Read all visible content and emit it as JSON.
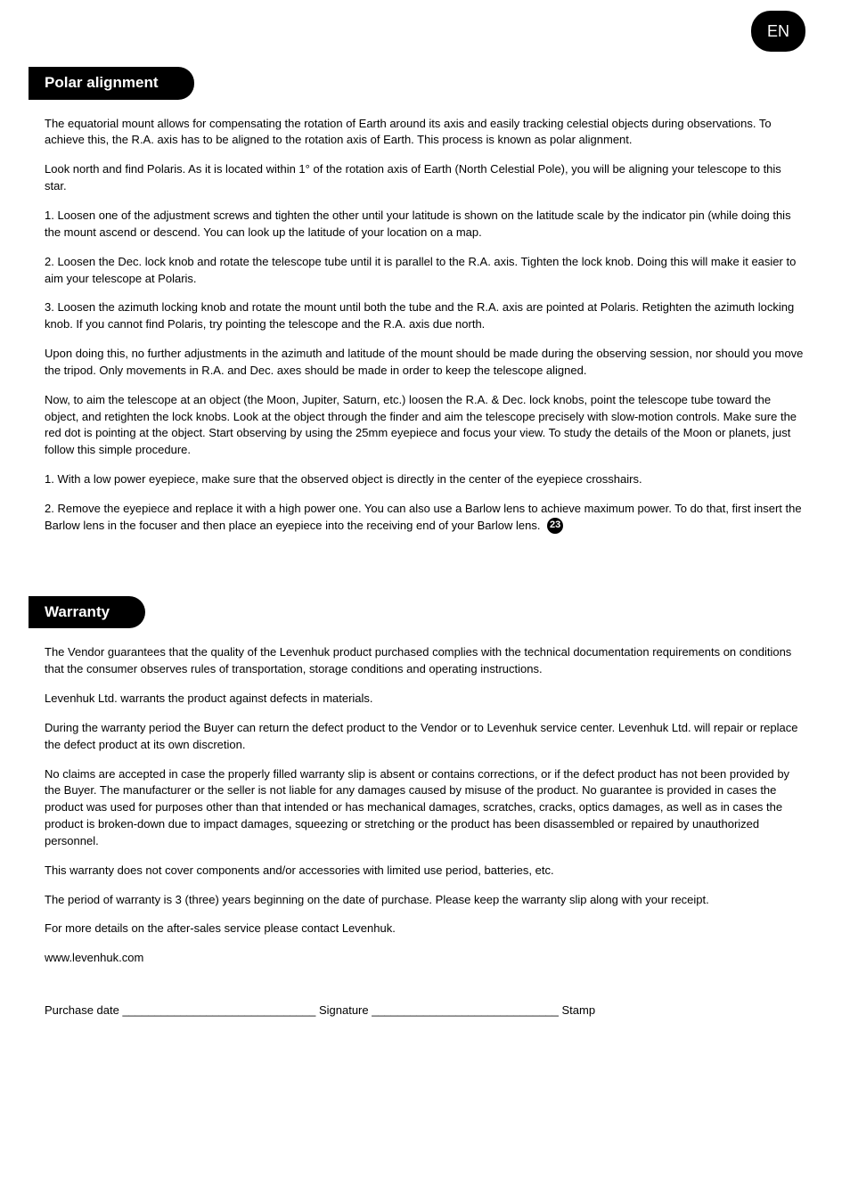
{
  "language_badge": "EN",
  "section1": {
    "title": "Polar alignment",
    "paragraphs": [
      "The equatorial mount allows for compensating the rotation of Earth around its axis and easily tracking celestial objects during observations. To achieve this, the R.A. axis has to be aligned to the rotation axis of Earth. This process is known as polar alignment.",
      "Look north and find Polaris. As it is located within 1° of the rotation axis of Earth (North Celestial Pole), you will be aligning your telescope to this star.",
      "1. Loosen one of the adjustment screws and tighten the other until your latitude is shown on the latitude scale by the indicator pin (while doing this the mount ascend or descend. You can look up the latitude of your location on a map.",
      "2. Loosen the Dec. lock knob and rotate the telescope tube until it is parallel to the R.A. axis. Tighten the lock knob. Doing this will make it easier to aim your telescope at Polaris.",
      "3. Loosen the azimuth locking knob and rotate the mount until both the tube and the R.A. axis are pointed at Polaris. Retighten the azimuth locking knob. If you cannot find Polaris, try pointing the telescope and the R.A. axis due north.",
      "Upon doing this, no further adjustments in the azimuth and latitude of the mount should be made during the observing session, nor should you move the tripod. Only movements in R.A. and Dec. axes should be made in order to keep the telescope aligned.",
      "Now, to aim the telescope at an object (the Moon, Jupiter, Saturn, etc.) loosen the R.A. & Dec. lock knobs, point the telescope tube toward the object, and retighten the lock knobs. Look at the object through the finder and aim the telescope precisely with slow-motion controls. Make sure the red dot is pointing at the object. Start observing by using the 25mm eyepiece and focus your view. To study the details of the Moon or planets, just follow this simple procedure.",
      "1. With a low power eyepiece, make sure that the observed object is directly in the center of the eyepiece crosshairs."
    ],
    "last_paragraph": "2. Remove the eyepiece and replace it with a high power one. You can also use a Barlow lens to achieve maximum power. To do that, first insert the Barlow lens in the focuser and then place an eyepiece into the receiving end of your Barlow lens.",
    "ref_number": "23"
  },
  "section2": {
    "title": "Warranty",
    "paragraphs": [
      "The Vendor guarantees that the quality of the Levenhuk product purchased complies with the technical documentation requirements on conditions that the consumer observes rules of transportation, storage conditions and operating instructions.",
      "Levenhuk Ltd. warrants the product against defects in materials.",
      "During the warranty period the Buyer can return the defect product to the Vendor or to Levenhuk service center. Levenhuk Ltd. will repair or replace the defect product at its own discretion.",
      "No claims are accepted in case the properly filled warranty slip is absent or contains corrections, or if the defect product has not been provided by the Buyer. The manufacturer or the seller is not liable for any damages caused by misuse of the product. No guarantee is provided in cases the product was used for purposes other than that intended or has mechanical damages, scratches, cracks, optics damages, as well as in cases the product is broken-down due to impact damages, squeezing or stretching or the product has been disassembled or repaired by unauthorized personnel.",
      "This warranty does not cover components and/or accessories with limited use period, batteries, etc.",
      "The period of warranty is 3 (three) years beginning on the date of purchase. Please keep the warranty slip along with your receipt.",
      "For more details on the after-sales service please contact Levenhuk."
    ],
    "website": "www.levenhuk.com",
    "signature_line": "Purchase date ______________________________ Signature _____________________________ Stamp"
  }
}
